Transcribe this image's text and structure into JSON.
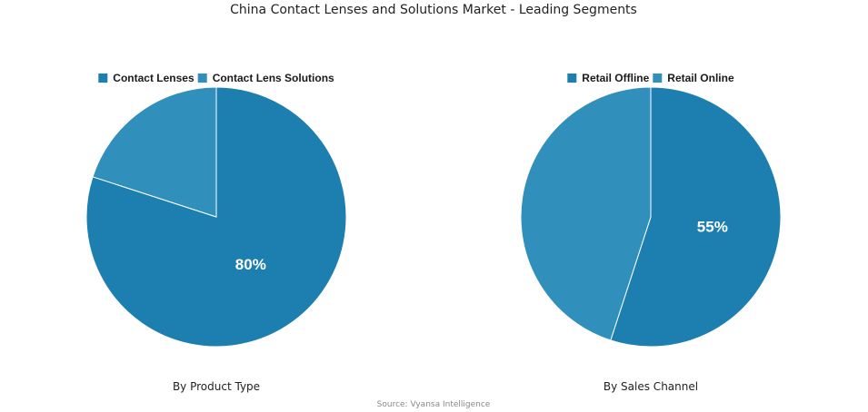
{
  "title": "China Contact Lenses and Solutions Market - Leading Segments",
  "source": "Source: Vyansa Intelligence",
  "colors": {
    "primary": "#1c7fb0",
    "secondary": "#318fbb",
    "separator": "#ffffff"
  },
  "chart_data": [
    {
      "type": "pie",
      "xlabel": "By Product Type",
      "legend_position": "top",
      "slices": [
        {
          "name": "Contact Lenses",
          "value": 80,
          "label": "80%"
        },
        {
          "name": "Contact Lens Solutions",
          "value": 20,
          "label": ""
        }
      ]
    },
    {
      "type": "pie",
      "xlabel": "By Sales Channel",
      "legend_position": "top",
      "slices": [
        {
          "name": "Retail Offline",
          "value": 55,
          "label": "55%"
        },
        {
          "name": "Retail Online",
          "value": 45,
          "label": ""
        }
      ]
    }
  ]
}
